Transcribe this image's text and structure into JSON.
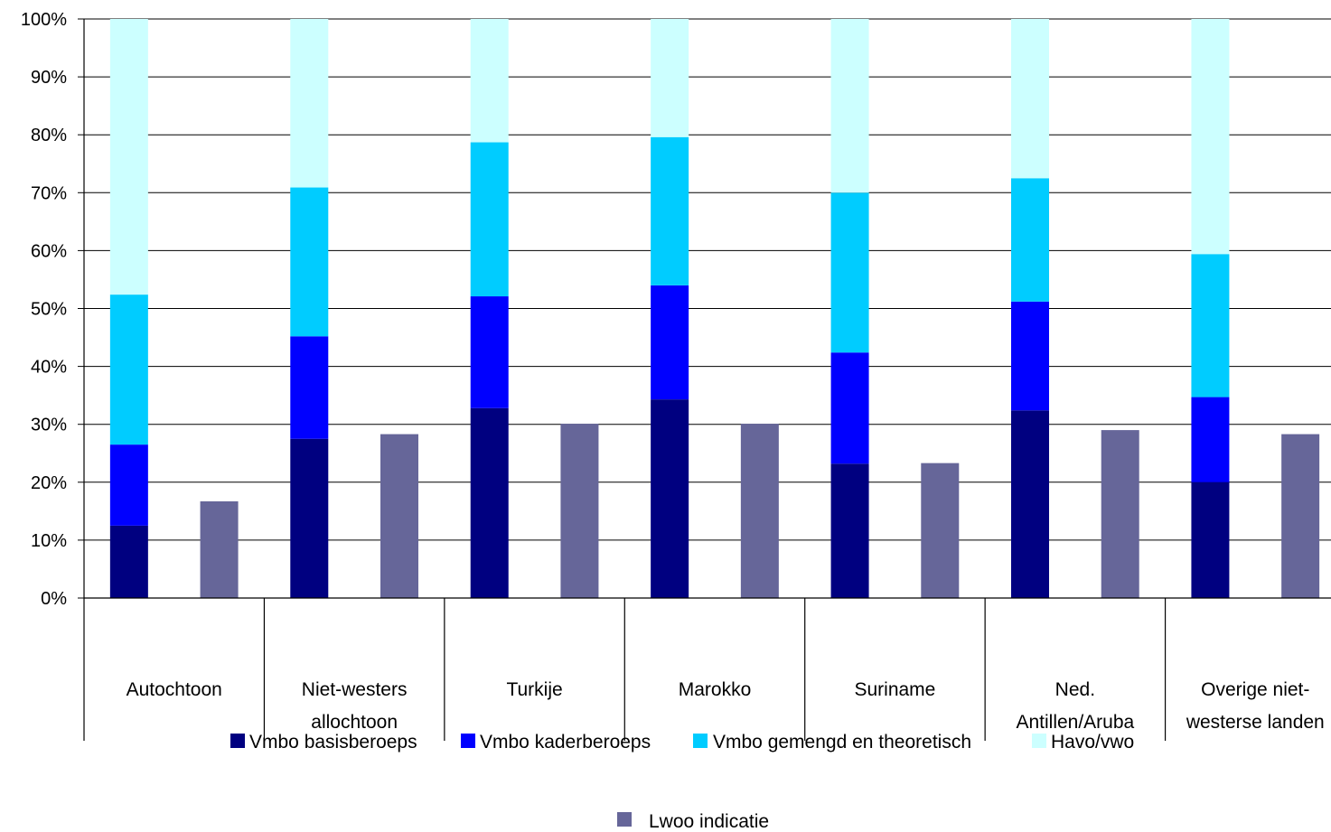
{
  "chart_data": {
    "type": "bar",
    "stacked": true,
    "title": "",
    "xlabel": "",
    "ylabel": "",
    "ylim": [
      0,
      100
    ],
    "y_ticks": [
      "0%",
      "10%",
      "20%",
      "30%",
      "40%",
      "50%",
      "60%",
      "70%",
      "80%",
      "90%",
      "100%"
    ],
    "grid": true,
    "legend_position": "bottom",
    "categories": [
      [
        "Autochtoon"
      ],
      [
        "Niet-westers",
        "allochtoon"
      ],
      [
        "Turkije"
      ],
      [
        "Marokko"
      ],
      [
        "Suriname"
      ],
      [
        "Ned.",
        "Antillen/Aruba"
      ],
      [
        "Overige niet-",
        "westerse landen"
      ]
    ],
    "stacked_series": [
      {
        "name": "Vmbo basisberoeps",
        "color": "#000080",
        "values": [
          12.5,
          27.5,
          32.8,
          34.3,
          23.2,
          32.4,
          20.0
        ]
      },
      {
        "name": "Vmbo kaderberoeps",
        "color": "#0000FF",
        "values": [
          14.0,
          17.7,
          19.3,
          19.7,
          19.2,
          18.8,
          14.7
        ]
      },
      {
        "name": "Vmbo gemengd en theoretisch",
        "color": "#00CCFF",
        "values": [
          25.9,
          25.7,
          26.6,
          25.6,
          27.6,
          21.3,
          24.7
        ]
      },
      {
        "name": "Havo/vwo",
        "color": "#CCFFFF",
        "values": [
          47.6,
          29.1,
          21.3,
          20.4,
          30.0,
          27.5,
          40.6
        ]
      }
    ],
    "side_series": {
      "name": "Lwoo indicatie",
      "color": "#666699",
      "values": [
        16.7,
        28.3,
        30.1,
        30.1,
        23.3,
        29.0,
        28.3
      ]
    }
  }
}
